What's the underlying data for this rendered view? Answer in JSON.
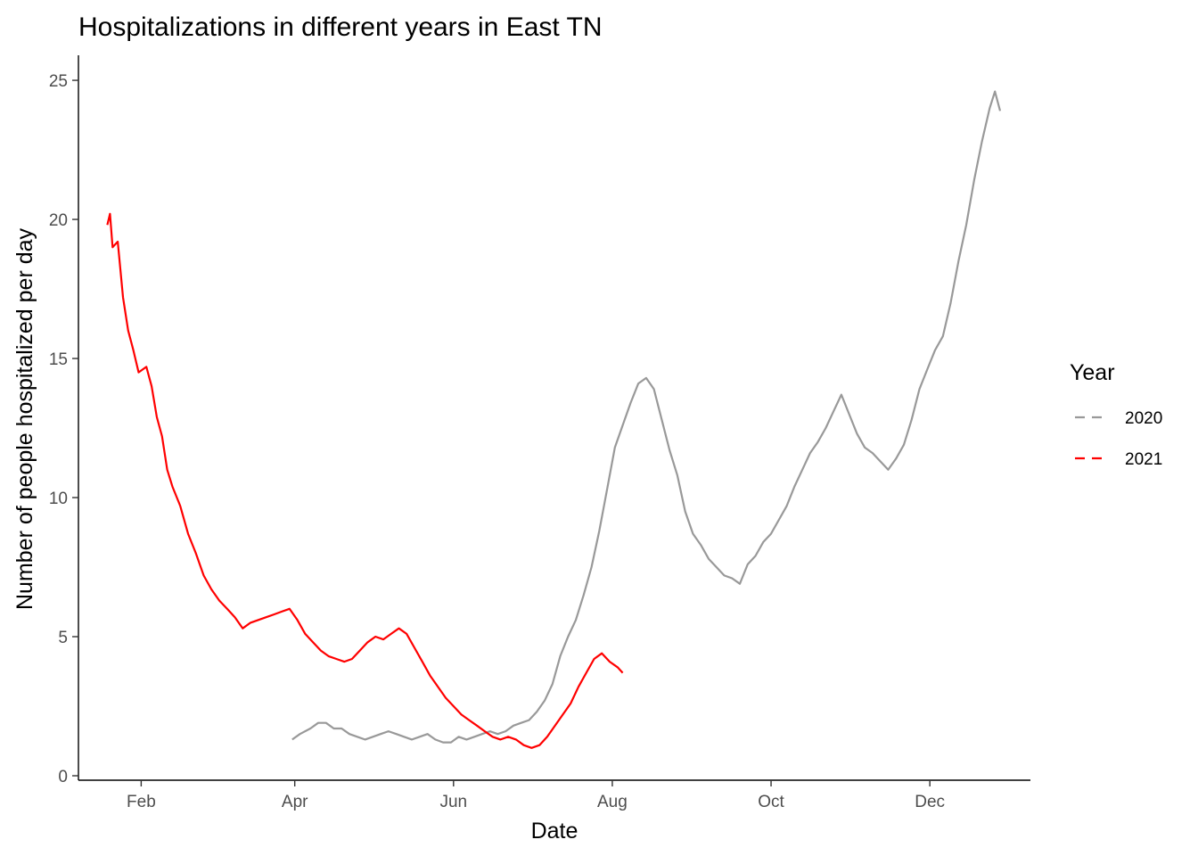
{
  "chart_data": {
    "type": "line",
    "title": "Hospitalizations in different years in East TN",
    "xlabel": "Date",
    "ylabel": "Number of people hospitalized per day",
    "x_is_month_of_year": true,
    "xlim": [
      "01-12",
      "12-28"
    ],
    "ylim": [
      0,
      25.9
    ],
    "x_ticks": [
      {
        "label": "Feb",
        "date": "02-01"
      },
      {
        "label": "Apr",
        "date": "04-01"
      },
      {
        "label": "Jun",
        "date": "06-01"
      },
      {
        "label": "Aug",
        "date": "08-01"
      },
      {
        "label": "Oct",
        "date": "10-01"
      },
      {
        "label": "Dec",
        "date": "12-01"
      }
    ],
    "y_ticks": [
      0,
      5,
      10,
      15,
      20,
      25
    ],
    "grid": false,
    "legend": {
      "title": "Year",
      "position": "right"
    },
    "series": [
      {
        "name": "2020",
        "color": "#999999",
        "points": [
          [
            "03-31",
            1.3
          ],
          [
            "04-03",
            1.5
          ],
          [
            "04-07",
            1.7
          ],
          [
            "04-10",
            1.9
          ],
          [
            "04-13",
            1.9
          ],
          [
            "04-16",
            1.7
          ],
          [
            "04-19",
            1.7
          ],
          [
            "04-22",
            1.5
          ],
          [
            "04-25",
            1.4
          ],
          [
            "04-28",
            1.3
          ],
          [
            "05-01",
            1.4
          ],
          [
            "05-04",
            1.5
          ],
          [
            "05-07",
            1.6
          ],
          [
            "05-10",
            1.5
          ],
          [
            "05-13",
            1.4
          ],
          [
            "05-16",
            1.3
          ],
          [
            "05-19",
            1.4
          ],
          [
            "05-22",
            1.5
          ],
          [
            "05-25",
            1.3
          ],
          [
            "05-28",
            1.2
          ],
          [
            "05-31",
            1.2
          ],
          [
            "06-03",
            1.4
          ],
          [
            "06-06",
            1.3
          ],
          [
            "06-09",
            1.4
          ],
          [
            "06-12",
            1.5
          ],
          [
            "06-15",
            1.6
          ],
          [
            "06-18",
            1.5
          ],
          [
            "06-21",
            1.6
          ],
          [
            "06-24",
            1.8
          ],
          [
            "06-27",
            1.9
          ],
          [
            "06-30",
            2.0
          ],
          [
            "07-03",
            2.3
          ],
          [
            "07-06",
            2.7
          ],
          [
            "07-09",
            3.3
          ],
          [
            "07-12",
            4.3
          ],
          [
            "07-15",
            5.0
          ],
          [
            "07-18",
            5.6
          ],
          [
            "07-21",
            6.5
          ],
          [
            "07-24",
            7.5
          ],
          [
            "07-27",
            8.8
          ],
          [
            "07-30",
            10.3
          ],
          [
            "08-02",
            11.8
          ],
          [
            "08-05",
            12.6
          ],
          [
            "08-08",
            13.4
          ],
          [
            "08-11",
            14.1
          ],
          [
            "08-14",
            14.3
          ],
          [
            "08-17",
            13.9
          ],
          [
            "08-20",
            12.8
          ],
          [
            "08-23",
            11.7
          ],
          [
            "08-26",
            10.8
          ],
          [
            "08-29",
            9.5
          ],
          [
            "09-01",
            8.7
          ],
          [
            "09-04",
            8.3
          ],
          [
            "09-07",
            7.8
          ],
          [
            "09-10",
            7.5
          ],
          [
            "09-13",
            7.2
          ],
          [
            "09-16",
            7.1
          ],
          [
            "09-19",
            6.9
          ],
          [
            "09-22",
            7.6
          ],
          [
            "09-25",
            7.9
          ],
          [
            "09-28",
            8.4
          ],
          [
            "10-01",
            8.7
          ],
          [
            "10-04",
            9.2
          ],
          [
            "10-07",
            9.7
          ],
          [
            "10-10",
            10.4
          ],
          [
            "10-13",
            11.0
          ],
          [
            "10-16",
            11.6
          ],
          [
            "10-19",
            12.0
          ],
          [
            "10-22",
            12.5
          ],
          [
            "10-25",
            13.1
          ],
          [
            "10-28",
            13.7
          ],
          [
            "10-31",
            13.0
          ],
          [
            "11-03",
            12.3
          ],
          [
            "11-06",
            11.8
          ],
          [
            "11-09",
            11.6
          ],
          [
            "11-12",
            11.3
          ],
          [
            "11-15",
            11.0
          ],
          [
            "11-18",
            11.4
          ],
          [
            "11-21",
            11.9
          ],
          [
            "11-24",
            12.8
          ],
          [
            "11-27",
            13.9
          ],
          [
            "11-30",
            14.6
          ],
          [
            "12-03",
            15.3
          ],
          [
            "12-06",
            15.8
          ],
          [
            "12-09",
            17.0
          ],
          [
            "12-12",
            18.5
          ],
          [
            "12-15",
            19.8
          ],
          [
            "12-18",
            21.4
          ],
          [
            "12-21",
            22.8
          ],
          [
            "12-24",
            24.0
          ],
          [
            "12-26",
            24.6
          ],
          [
            "12-28",
            23.9
          ]
        ]
      },
      {
        "name": "2021",
        "color": "#ff0000",
        "points": [
          [
            "01-19",
            19.8
          ],
          [
            "01-20",
            20.2
          ],
          [
            "01-21",
            19.0
          ],
          [
            "01-23",
            19.2
          ],
          [
            "01-25",
            17.2
          ],
          [
            "01-27",
            16.0
          ],
          [
            "01-29",
            15.3
          ],
          [
            "01-31",
            14.5
          ],
          [
            "02-03",
            14.7
          ],
          [
            "02-05",
            14.0
          ],
          [
            "02-07",
            12.9
          ],
          [
            "02-09",
            12.2
          ],
          [
            "02-11",
            11.0
          ],
          [
            "02-13",
            10.4
          ],
          [
            "02-16",
            9.7
          ],
          [
            "02-19",
            8.7
          ],
          [
            "02-22",
            8.0
          ],
          [
            "02-25",
            7.2
          ],
          [
            "02-28",
            6.7
          ],
          [
            "03-03",
            6.3
          ],
          [
            "03-06",
            6.0
          ],
          [
            "03-09",
            5.7
          ],
          [
            "03-12",
            5.3
          ],
          [
            "03-15",
            5.5
          ],
          [
            "03-18",
            5.6
          ],
          [
            "03-21",
            5.7
          ],
          [
            "03-24",
            5.8
          ],
          [
            "03-27",
            5.9
          ],
          [
            "03-30",
            6.0
          ],
          [
            "04-02",
            5.6
          ],
          [
            "04-05",
            5.1
          ],
          [
            "04-08",
            4.8
          ],
          [
            "04-11",
            4.5
          ],
          [
            "04-14",
            4.3
          ],
          [
            "04-17",
            4.2
          ],
          [
            "04-20",
            4.1
          ],
          [
            "04-23",
            4.2
          ],
          [
            "04-26",
            4.5
          ],
          [
            "04-29",
            4.8
          ],
          [
            "05-02",
            5.0
          ],
          [
            "05-05",
            4.9
          ],
          [
            "05-08",
            5.1
          ],
          [
            "05-11",
            5.3
          ],
          [
            "05-14",
            5.1
          ],
          [
            "05-17",
            4.6
          ],
          [
            "05-20",
            4.1
          ],
          [
            "05-23",
            3.6
          ],
          [
            "05-26",
            3.2
          ],
          [
            "05-29",
            2.8
          ],
          [
            "06-01",
            2.5
          ],
          [
            "06-04",
            2.2
          ],
          [
            "06-07",
            2.0
          ],
          [
            "06-10",
            1.8
          ],
          [
            "06-13",
            1.6
          ],
          [
            "06-16",
            1.4
          ],
          [
            "06-19",
            1.3
          ],
          [
            "06-22",
            1.4
          ],
          [
            "06-25",
            1.3
          ],
          [
            "06-28",
            1.1
          ],
          [
            "07-01",
            1.0
          ],
          [
            "07-04",
            1.1
          ],
          [
            "07-07",
            1.4
          ],
          [
            "07-10",
            1.8
          ],
          [
            "07-13",
            2.2
          ],
          [
            "07-16",
            2.6
          ],
          [
            "07-19",
            3.2
          ],
          [
            "07-22",
            3.7
          ],
          [
            "07-25",
            4.2
          ],
          [
            "07-28",
            4.4
          ],
          [
            "07-31",
            4.1
          ],
          [
            "08-03",
            3.9
          ],
          [
            "08-05",
            3.7
          ]
        ]
      }
    ]
  }
}
